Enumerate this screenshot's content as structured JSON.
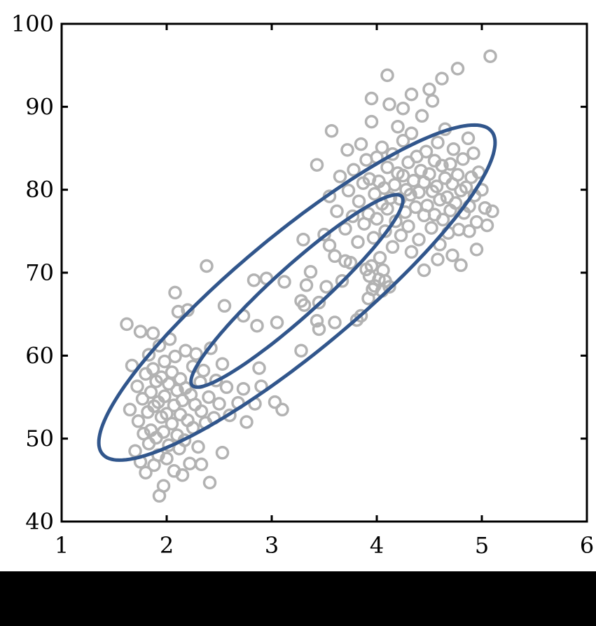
{
  "figure": {
    "kind": "scatter-plot-with-confidence-ellipses",
    "background_color": "#ffffff",
    "bottom_bar_color": "#000000",
    "axis_color": "#000000",
    "marker_color": "#b2b2b2",
    "ellipse_color": "#31568c"
  },
  "chart_data": {
    "type": "scatter",
    "title": "",
    "xlabel": "",
    "ylabel": "",
    "xlim": [
      1,
      6
    ],
    "ylim": [
      40,
      100
    ],
    "x_ticks": [
      1,
      2,
      3,
      4,
      5,
      6
    ],
    "y_ticks": [
      40,
      50,
      60,
      70,
      80,
      90,
      100
    ],
    "grid": false,
    "legend": null,
    "marker": "open-circle",
    "series": [
      {
        "name": "observations",
        "color": "#b2b2b2",
        "points": [
          [
            1.62,
            63.8
          ],
          [
            1.65,
            53.5
          ],
          [
            1.67,
            58.8
          ],
          [
            1.7,
            48.5
          ],
          [
            1.72,
            56.3
          ],
          [
            1.73,
            52.1
          ],
          [
            1.75,
            47.2
          ],
          [
            1.75,
            62.9
          ],
          [
            1.77,
            54.8
          ],
          [
            1.78,
            50.6
          ],
          [
            1.8,
            57.8
          ],
          [
            1.8,
            45.9
          ],
          [
            1.82,
            53.2
          ],
          [
            1.83,
            60.1
          ],
          [
            1.83,
            49.4
          ],
          [
            1.85,
            55.6
          ],
          [
            1.85,
            51.0
          ],
          [
            1.87,
            58.4
          ],
          [
            1.87,
            62.7
          ],
          [
            1.88,
            46.8
          ],
          [
            1.88,
            53.9
          ],
          [
            1.9,
            50.1
          ],
          [
            1.9,
            56.9
          ],
          [
            1.92,
            48.0
          ],
          [
            1.92,
            54.4
          ],
          [
            1.93,
            61.2
          ],
          [
            1.93,
            43.1
          ],
          [
            1.95,
            52.6
          ],
          [
            1.95,
            57.4
          ],
          [
            1.97,
            44.3
          ],
          [
            1.97,
            50.8
          ],
          [
            1.98,
            55.1
          ],
          [
            1.98,
            59.3
          ],
          [
            2.0,
            47.6
          ],
          [
            2.0,
            53.0
          ],
          [
            2.02,
            56.6
          ],
          [
            2.02,
            49.2
          ],
          [
            2.03,
            62.0
          ],
          [
            2.05,
            51.8
          ],
          [
            2.05,
            58.0
          ],
          [
            2.07,
            46.1
          ],
          [
            2.07,
            54.0
          ],
          [
            2.08,
            59.9
          ],
          [
            2.08,
            67.6
          ],
          [
            2.1,
            50.4
          ],
          [
            2.1,
            55.8
          ],
          [
            2.11,
            65.3
          ],
          [
            2.12,
            48.8
          ],
          [
            2.13,
            52.9
          ],
          [
            2.13,
            57.2
          ],
          [
            2.15,
            45.6
          ],
          [
            2.15,
            54.6
          ],
          [
            2.17,
            49.8
          ],
          [
            2.18,
            56.1
          ],
          [
            2.18,
            60.6
          ],
          [
            2.2,
            52.2
          ],
          [
            2.2,
            65.5
          ],
          [
            2.22,
            47.0
          ],
          [
            2.23,
            55.3
          ],
          [
            2.25,
            58.7
          ],
          [
            2.25,
            51.3
          ],
          [
            2.27,
            54.1
          ],
          [
            2.28,
            60.2
          ],
          [
            2.3,
            49.0
          ],
          [
            2.32,
            56.8
          ],
          [
            2.33,
            46.9
          ],
          [
            2.33,
            53.3
          ],
          [
            2.35,
            58.2
          ],
          [
            2.37,
            51.9
          ],
          [
            2.4,
            55.0
          ],
          [
            2.41,
            44.7
          ],
          [
            2.42,
            60.9
          ],
          [
            2.45,
            52.5
          ],
          [
            2.47,
            57.0
          ],
          [
            2.5,
            54.2
          ],
          [
            2.53,
            48.3
          ],
          [
            2.53,
            59.0
          ],
          [
            2.57,
            56.2
          ],
          [
            2.6,
            52.8
          ],
          [
            2.68,
            54.3
          ],
          [
            2.73,
            56.0
          ],
          [
            2.76,
            52.0
          ],
          [
            2.84,
            54.2
          ],
          [
            2.9,
            56.3
          ],
          [
            2.88,
            58.5
          ],
          [
            3.03,
            54.4
          ],
          [
            3.1,
            53.5
          ],
          [
            2.38,
            70.8
          ],
          [
            2.55,
            66.0
          ],
          [
            2.73,
            64.8
          ],
          [
            2.86,
            63.6
          ],
          [
            2.83,
            69.1
          ],
          [
            2.95,
            69.3
          ],
          [
            3.05,
            64.0
          ],
          [
            3.12,
            68.9
          ],
          [
            3.28,
            66.6
          ],
          [
            3.28,
            60.6
          ],
          [
            3.45,
            63.2
          ],
          [
            3.6,
            64.0
          ],
          [
            3.85,
            64.8
          ],
          [
            3.3,
            74.0
          ],
          [
            3.55,
            73.3
          ],
          [
            3.7,
            71.4
          ],
          [
            3.95,
            70.8
          ],
          [
            4.06,
            70.3
          ],
          [
            3.33,
            68.5
          ],
          [
            3.31,
            66.1
          ],
          [
            3.45,
            66.4
          ],
          [
            3.43,
            64.2
          ],
          [
            3.81,
            64.3
          ],
          [
            3.98,
            68.4
          ],
          [
            4.08,
            69.0
          ],
          [
            3.93,
            69.6
          ],
          [
            4.02,
            69.2
          ],
          [
            4.12,
            68.3
          ],
          [
            3.96,
            68.0
          ],
          [
            3.37,
            70.1
          ],
          [
            3.43,
            83.0
          ],
          [
            3.5,
            74.6
          ],
          [
            3.52,
            68.3
          ],
          [
            3.55,
            79.2
          ],
          [
            3.57,
            87.1
          ],
          [
            3.6,
            72.0
          ],
          [
            3.62,
            77.4
          ],
          [
            3.65,
            81.6
          ],
          [
            3.67,
            69.0
          ],
          [
            3.7,
            75.3
          ],
          [
            3.72,
            84.8
          ],
          [
            3.73,
            79.9
          ],
          [
            3.75,
            71.2
          ],
          [
            3.77,
            76.8
          ],
          [
            3.78,
            82.4
          ],
          [
            3.82,
            73.7
          ],
          [
            3.83,
            78.6
          ],
          [
            3.85,
            85.5
          ],
          [
            3.87,
            80.8
          ],
          [
            3.88,
            75.9
          ],
          [
            3.9,
            70.4
          ],
          [
            3.9,
            83.6
          ],
          [
            3.92,
            77.1
          ],
          [
            3.92,
            66.9
          ],
          [
            3.93,
            81.3
          ],
          [
            3.95,
            88.2
          ],
          [
            3.95,
            91.0
          ],
          [
            3.97,
            74.2
          ],
          [
            3.98,
            79.5
          ],
          [
            4.0,
            83.9
          ],
          [
            4.0,
            76.5
          ],
          [
            4.02,
            81.0
          ],
          [
            4.03,
            71.8
          ],
          [
            4.05,
            78.3
          ],
          [
            4.05,
            85.1
          ],
          [
            4.05,
            67.8
          ],
          [
            4.07,
            80.2
          ],
          [
            4.08,
            75.0
          ],
          [
            4.1,
            82.7
          ],
          [
            4.1,
            77.7
          ],
          [
            4.1,
            93.8
          ],
          [
            4.12,
            90.3
          ],
          [
            4.13,
            79.0
          ],
          [
            4.15,
            84.3
          ],
          [
            4.15,
            73.1
          ],
          [
            4.17,
            80.6
          ],
          [
            4.18,
            76.2
          ],
          [
            4.2,
            82.0
          ],
          [
            4.2,
            87.6
          ],
          [
            4.22,
            78.9
          ],
          [
            4.23,
            74.5
          ],
          [
            4.25,
            81.7
          ],
          [
            4.25,
            85.9
          ],
          [
            4.25,
            89.8
          ],
          [
            4.27,
            77.3
          ],
          [
            4.28,
            80.0
          ],
          [
            4.3,
            83.3
          ],
          [
            4.3,
            75.6
          ],
          [
            4.32,
            79.4
          ],
          [
            4.33,
            86.8
          ],
          [
            4.33,
            72.5
          ],
          [
            4.33,
            91.5
          ],
          [
            4.35,
            81.1
          ],
          [
            4.37,
            77.9
          ],
          [
            4.38,
            84.0
          ],
          [
            4.4,
            79.7
          ],
          [
            4.4,
            74.0
          ],
          [
            4.42,
            82.3
          ],
          [
            4.43,
            88.9
          ],
          [
            4.45,
            76.9
          ],
          [
            4.45,
            80.9
          ],
          [
            4.45,
            70.3
          ],
          [
            4.47,
            84.6
          ],
          [
            4.48,
            78.1
          ],
          [
            4.5,
            81.9
          ],
          [
            4.5,
            92.1
          ],
          [
            4.52,
            75.4
          ],
          [
            4.53,
            79.8
          ],
          [
            4.53,
            90.7
          ],
          [
            4.55,
            83.5
          ],
          [
            4.55,
            77.0
          ],
          [
            4.57,
            80.4
          ],
          [
            4.58,
            85.7
          ],
          [
            4.58,
            71.6
          ],
          [
            4.6,
            73.4
          ],
          [
            4.6,
            78.8
          ],
          [
            4.62,
            82.9
          ],
          [
            4.62,
            93.4
          ],
          [
            4.63,
            76.4
          ],
          [
            4.65,
            81.4
          ],
          [
            4.65,
            87.3
          ],
          [
            4.67,
            79.1
          ],
          [
            4.68,
            74.8
          ],
          [
            4.7,
            83.1
          ],
          [
            4.7,
            77.5
          ],
          [
            4.72,
            80.7
          ],
          [
            4.72,
            72.1
          ],
          [
            4.73,
            84.9
          ],
          [
            4.75,
            78.4
          ],
          [
            4.77,
            81.8
          ],
          [
            4.77,
            94.6
          ],
          [
            4.78,
            75.2
          ],
          [
            4.8,
            79.9
          ],
          [
            4.8,
            70.9
          ],
          [
            4.82,
            83.7
          ],
          [
            4.83,
            77.2
          ],
          [
            4.85,
            80.3
          ],
          [
            4.87,
            86.2
          ],
          [
            4.88,
            78.0
          ],
          [
            4.88,
            75.0
          ],
          [
            4.9,
            81.5
          ],
          [
            4.92,
            84.4
          ],
          [
            4.93,
            79.3
          ],
          [
            4.95,
            76.1
          ],
          [
            4.95,
            72.8
          ],
          [
            4.97,
            82.1
          ],
          [
            5.0,
            80.0
          ],
          [
            5.03,
            77.8
          ],
          [
            5.05,
            75.7
          ],
          [
            5.08,
            96.1
          ],
          [
            5.1,
            77.4
          ]
        ]
      }
    ],
    "ellipses": [
      {
        "name": "outer-confidence-ellipse",
        "center": [
          3.24,
          67.6
        ],
        "axis_u": [
          1.69,
          20.2
        ],
        "semi_minor": 0.84,
        "color": "#31568c"
      },
      {
        "name": "inner-confidence-ellipse",
        "center": [
          3.24,
          67.8
        ],
        "axis_u": [
          0.95,
          11.6
        ],
        "semi_minor": 0.34,
        "color": "#31568c"
      }
    ]
  }
}
